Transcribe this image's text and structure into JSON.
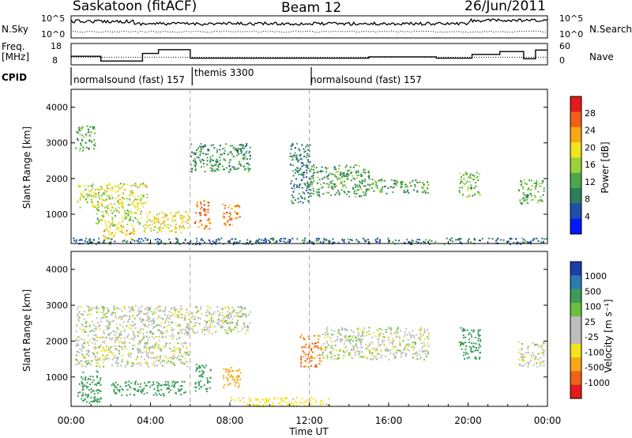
{
  "header": {
    "station": "Saskatoon (fitACF)",
    "beam": "Beam 12",
    "date": "26/Jun/2011"
  },
  "noise_panel": {
    "left_label": "N.Sky",
    "right_label": "N.Search",
    "left_ticks": [
      "10^5",
      "10^0"
    ],
    "right_ticks": [
      "10^5",
      "10^0"
    ]
  },
  "freq_panel": {
    "left_label_1": "Freq.",
    "left_label_2": "[MHz]",
    "right_label": "Nave",
    "left_ticks": [
      "18",
      "8"
    ],
    "right_ticks": [
      "60",
      "0"
    ],
    "freq_steps": [
      [
        0,
        12.5
      ],
      [
        1.5,
        10
      ],
      [
        3.6,
        14
      ],
      [
        4.4,
        16
      ],
      [
        6.0,
        11.5
      ],
      [
        13.1,
        11.5
      ],
      [
        13.4,
        11.5
      ],
      [
        15.0,
        12.2
      ],
      [
        18.4,
        11.5
      ],
      [
        20.2,
        13.5
      ],
      [
        21.6,
        15.0
      ],
      [
        22.8,
        11.2
      ],
      [
        23.4,
        15.8
      ]
    ],
    "nave_level": 12.0
  },
  "cpid": {
    "label": "CPID",
    "segments": [
      {
        "text": "normalsound (fast) 157",
        "start_hr": 0
      },
      {
        "text": "themis 3300",
        "start_hr": 6.1
      },
      {
        "text": "normalsound (fast) 157",
        "start_hr": 12.1
      }
    ]
  },
  "power_panel": {
    "ylabel": "Slant Range [km]",
    "cbar_label": "Power [dB]",
    "cbar_ticks": [
      "28",
      "24",
      "20",
      "16",
      "12",
      "8",
      "4"
    ],
    "cbar_colors": [
      "#0018ff",
      "#1f4fa8",
      "#2e7d5a",
      "#4aa84a",
      "#9cd13a",
      "#f2e41e",
      "#f7a814",
      "#f0601a",
      "#e41a1c"
    ]
  },
  "velocity_panel": {
    "ylabel": "Slant Range [km]",
    "cbar_label": "Velocity [m s⁻¹]",
    "cbar_ticks": [
      "1000",
      "500",
      "100",
      "25",
      "-25",
      "-100",
      "-500",
      "-1000"
    ],
    "cbar_colors": [
      "#1a3fa8",
      "#2a7bb0",
      "#3a9c5a",
      "#6cc040",
      "#bdbdbd",
      "#bdbdbd",
      "#f2e41e",
      "#f7a814",
      "#f0601a",
      "#e41a1c"
    ]
  },
  "xaxis": {
    "label": "Time UT",
    "ticks": [
      "00:00",
      "04:00",
      "08:00",
      "12:00",
      "16:00",
      "20:00",
      "00:00"
    ],
    "range_hr": [
      0,
      24
    ]
  },
  "chart_data": {
    "type": "heatmap",
    "title": "Saskatoon (fitACF) Beam 12 26/Jun/2011",
    "xlabel": "Time UT",
    "ylabel": "Slant Range [km]",
    "xlim_hr": [
      0,
      24
    ],
    "ylim_km": [
      180,
      4500
    ],
    "yticks": [
      1000,
      2000,
      3000,
      4000
    ],
    "power_regions": [
      {
        "t0": 0.2,
        "t1": 1.2,
        "r0": 2800,
        "r1": 3500,
        "level": 12
      },
      {
        "t0": 0.3,
        "t1": 3.8,
        "r0": 1200,
        "r1": 1900,
        "level": 18
      },
      {
        "t0": 1.2,
        "t1": 3.5,
        "r0": 700,
        "r1": 1200,
        "level": 16
      },
      {
        "t0": 1.6,
        "t1": 3.2,
        "r0": 300,
        "r1": 700,
        "level": 22
      },
      {
        "t0": 3.6,
        "t1": 5.9,
        "r0": 500,
        "r1": 1100,
        "level": 20
      },
      {
        "t0": 6.2,
        "t1": 7.0,
        "r0": 600,
        "r1": 1400,
        "level": 27
      },
      {
        "t0": 7.6,
        "t1": 8.5,
        "r0": 700,
        "r1": 1300,
        "level": 26
      },
      {
        "t0": 6.0,
        "t1": 9.0,
        "r0": 2200,
        "r1": 3000,
        "level": 10
      },
      {
        "t0": 11.0,
        "t1": 12.0,
        "r0": 1300,
        "r1": 3000,
        "level": 8
      },
      {
        "t0": 12.0,
        "t1": 15.0,
        "r0": 1500,
        "r1": 2400,
        "level": 11
      },
      {
        "t0": 15.0,
        "t1": 18.0,
        "r0": 1600,
        "r1": 2000,
        "level": 12
      },
      {
        "t0": 19.5,
        "t1": 20.6,
        "r0": 1500,
        "r1": 2200,
        "level": 14
      },
      {
        "t0": 22.5,
        "t1": 23.8,
        "r0": 1300,
        "r1": 2000,
        "level": 12
      },
      {
        "t0": 0.0,
        "t1": 24.0,
        "r0": 180,
        "r1": 350,
        "level": 6
      }
    ],
    "velocity_regions": [
      {
        "t0": 0.2,
        "t1": 5.9,
        "r0": 1300,
        "r1": 3000,
        "vel": 0
      },
      {
        "t0": 0.3,
        "t1": 1.5,
        "r0": 300,
        "r1": 1200,
        "vel": 150
      },
      {
        "t0": 2.0,
        "t1": 3.5,
        "r0": 500,
        "r1": 900,
        "vel": 150
      },
      {
        "t0": 3.5,
        "t1": 5.8,
        "r0": 500,
        "r1": 900,
        "vel": 200
      },
      {
        "t0": 6.2,
        "t1": 7.0,
        "r0": 600,
        "r1": 1400,
        "vel": 300
      },
      {
        "t0": 7.6,
        "t1": 8.5,
        "r0": 700,
        "r1": 1300,
        "vel": -400
      },
      {
        "t0": 6.0,
        "t1": 9.0,
        "r0": 2200,
        "r1": 3000,
        "vel": 0
      },
      {
        "t0": 8.0,
        "t1": 13.0,
        "r0": 200,
        "r1": 450,
        "vel": -60
      },
      {
        "t0": 11.5,
        "t1": 12.6,
        "r0": 1300,
        "r1": 2200,
        "vel": -500
      },
      {
        "t0": 12.6,
        "t1": 18.0,
        "r0": 1500,
        "r1": 2400,
        "vel": 0
      },
      {
        "t0": 19.5,
        "t1": 20.6,
        "r0": 1500,
        "r1": 2400,
        "vel": 200
      },
      {
        "t0": 22.5,
        "t1": 23.8,
        "r0": 1300,
        "r1": 2000,
        "vel": 0
      }
    ]
  }
}
